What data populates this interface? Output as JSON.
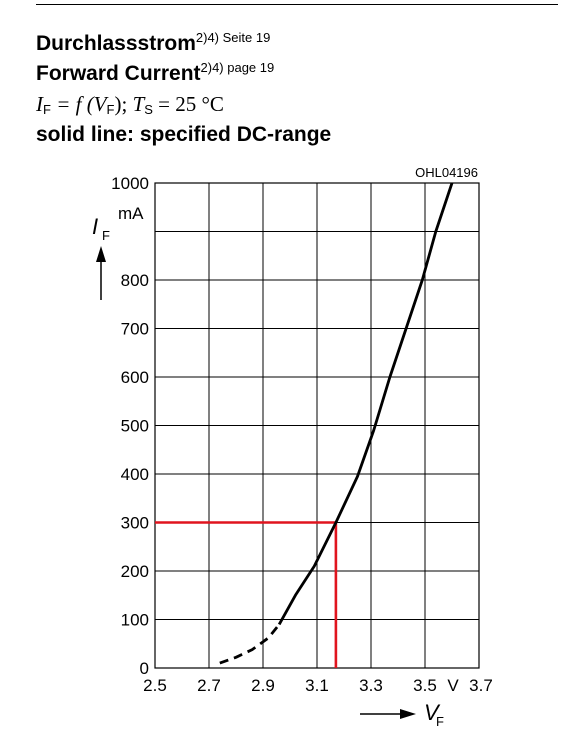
{
  "header": {
    "title_de": "Durchlassstrom",
    "title_de_sup": "2)4) Seite 19",
    "title_en": "Forward Current",
    "title_en_sup": "2)4) page 19",
    "formula": {
      "i_letter": "I",
      "i_sub": "F",
      "mid": " = f (",
      "v_letter": "V",
      "v_sub": "F",
      "sep": "); ",
      "t_letter": "T",
      "t_sub": "S",
      "tail": " = 25 °C"
    },
    "note": "solid line: specified DC-range"
  },
  "chart_data": {
    "type": "line",
    "code": "OHL04196",
    "ylabel_letter": "I",
    "ylabel_sub": "F",
    "y_unit": "mA",
    "xlabel_letter": "V",
    "xlabel_sub": "F",
    "x_unit": "V",
    "xlim": [
      2.5,
      3.7
    ],
    "ylim": [
      0,
      1000
    ],
    "x_ticks": [
      2.5,
      2.7,
      2.9,
      3.1,
      3.3,
      3.5,
      3.7
    ],
    "x_tick_labels": [
      "2.5",
      "2.7",
      "2.9",
      "3.1",
      "3.3",
      "3.5",
      "3.7"
    ],
    "y_ticks": [
      0,
      100,
      200,
      300,
      400,
      500,
      600,
      700,
      800,
      1000
    ],
    "y_tick_labels": [
      "0",
      "100",
      "200",
      "300",
      "400",
      "500",
      "600",
      "700",
      "800",
      "1000"
    ],
    "grid": true,
    "series": [
      {
        "style": "dashed",
        "color": "#000000",
        "points": [
          [
            2.74,
            10
          ],
          [
            2.8,
            22
          ],
          [
            2.86,
            38
          ],
          [
            2.92,
            62
          ],
          [
            2.96,
            90
          ]
        ]
      },
      {
        "style": "solid",
        "color": "#000000",
        "points": [
          [
            2.96,
            90
          ],
          [
            3.02,
            150
          ],
          [
            3.09,
            210
          ],
          [
            3.17,
            300
          ],
          [
            3.25,
            395
          ],
          [
            3.31,
            490
          ],
          [
            3.37,
            600
          ],
          [
            3.43,
            700
          ],
          [
            3.49,
            800
          ],
          [
            3.54,
            900
          ],
          [
            3.6,
            1000
          ]
        ]
      }
    ],
    "annotations": [
      {
        "type": "crosshair",
        "color": "#e0141e",
        "x": 3.17,
        "y": 300
      }
    ]
  }
}
